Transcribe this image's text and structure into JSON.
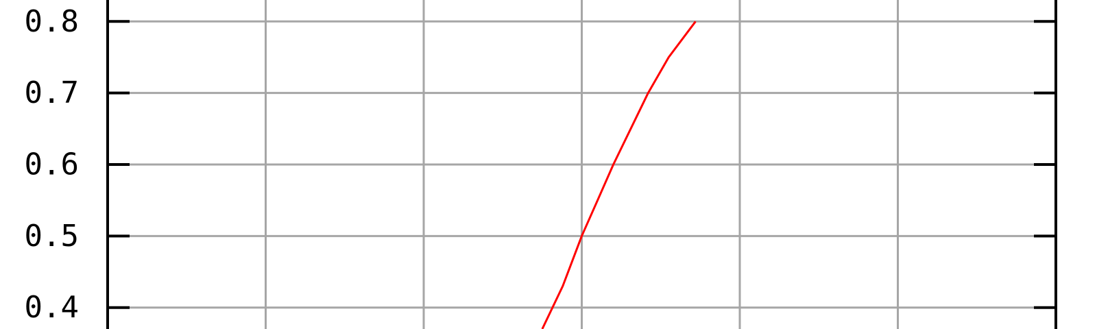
{
  "chart_data": {
    "type": "line",
    "title": "",
    "xlabel": "",
    "ylabel": "",
    "xlim": [
      0,
      6
    ],
    "ylim": [
      0.37,
      0.83
    ],
    "x_gridlines": [
      1,
      2,
      3,
      4,
      5
    ],
    "y_ticks": [
      0.8,
      0.7,
      0.6,
      0.5,
      0.4
    ],
    "y_tick_labels": [
      "0.8",
      "0.7",
      "0.6",
      "0.5",
      "0.4"
    ],
    "grid": true,
    "colors": {
      "grid": "#a6a6a6",
      "axis": "#000000",
      "series": "#ff0000",
      "background": "#ffffff"
    },
    "series": [
      {
        "x": [
          2.75,
          2.88,
          3.0,
          3.1,
          3.2,
          3.42,
          3.55,
          3.72
        ],
        "values": [
          0.37,
          0.43,
          0.5,
          0.55,
          0.6,
          0.7,
          0.75,
          0.8
        ]
      }
    ]
  }
}
